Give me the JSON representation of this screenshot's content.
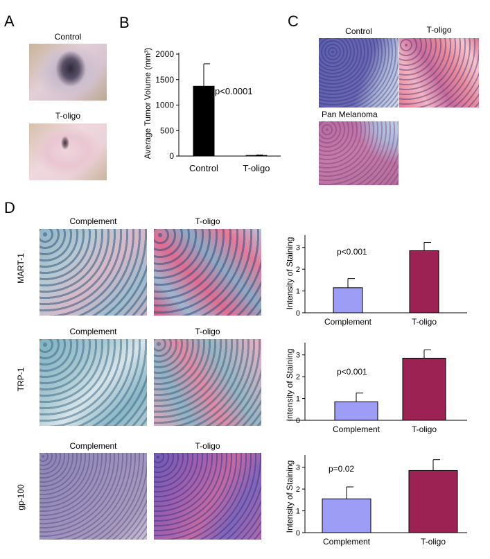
{
  "panels": {
    "A": "A",
    "B": "B",
    "C": "C",
    "D": "D"
  },
  "panelA": {
    "top_label": "Control",
    "bottom_label": "T-oligo"
  },
  "panelC": {
    "control_label": "Control",
    "toligo_label": "T-oligo",
    "pan_label": "Pan Melanoma"
  },
  "panelD": {
    "col_left": "Complement",
    "col_right": "T-oligo",
    "rows": [
      "MART-1",
      "TRP-1",
      "gp-100"
    ]
  },
  "colors": {
    "control_bar": "#000000",
    "complement_bar": "#9d9df5",
    "toligo_bar": "#9b2252",
    "he_purple": "#5b5aa8",
    "he_pink": "#d86a8c"
  },
  "chart_data": [
    {
      "type": "bar",
      "categories": [
        "Control",
        "T-oligo"
      ],
      "values": [
        1370,
        12
      ],
      "errors": [
        440,
        10
      ],
      "ylabel": "Average Tumor Volume (mm³)",
      "ylim": [
        0,
        2000
      ],
      "yticks": [
        0,
        500,
        1000,
        1500,
        2000
      ],
      "annotation": "p<0.0001"
    },
    {
      "type": "bar",
      "categories": [
        "Complement",
        "T-oligo"
      ],
      "values": [
        1.15,
        2.85
      ],
      "errors": [
        0.42,
        0.38
      ],
      "ylabel": "Intensity of Staining",
      "ylim": [
        0,
        3.5
      ],
      "yticks": [
        0,
        1,
        2,
        3
      ],
      "annotation": "p<0.001"
    },
    {
      "type": "bar",
      "categories": [
        "Complement",
        "T-oligo"
      ],
      "values": [
        0.85,
        2.85
      ],
      "errors": [
        0.4,
        0.38
      ],
      "ylabel": "Intensity of Staining",
      "ylim": [
        0,
        3.5
      ],
      "yticks": [
        0,
        1,
        2,
        3
      ],
      "annotation": "p<0.001"
    },
    {
      "type": "bar",
      "categories": [
        "Complement",
        "T-oligo"
      ],
      "values": [
        1.55,
        2.85
      ],
      "errors": [
        0.55,
        0.5
      ],
      "ylabel": "Intensity of Staining",
      "ylim": [
        0,
        3.5
      ],
      "yticks": [
        0,
        1,
        2,
        3
      ],
      "annotation": "p=0.02"
    }
  ]
}
